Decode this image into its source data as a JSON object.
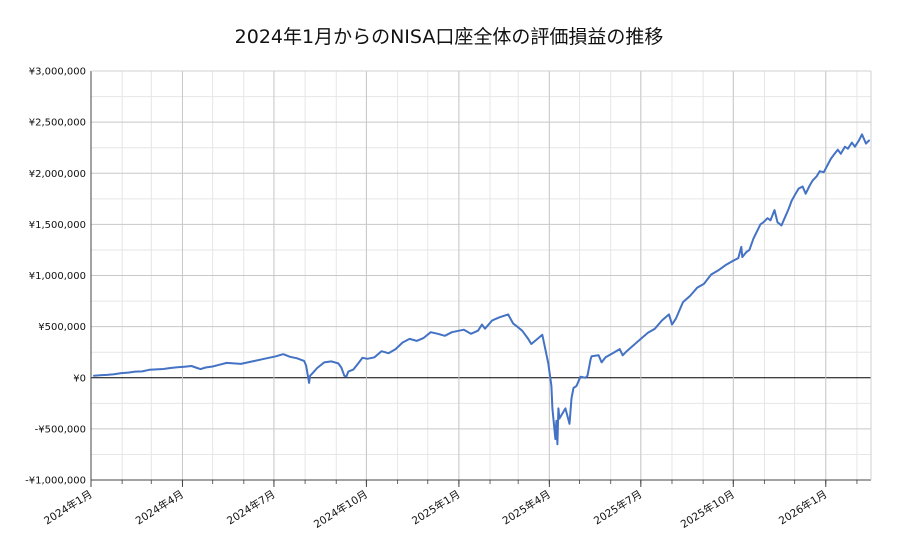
{
  "chart_data": {
    "type": "line",
    "title": "2024年1月からのNISA口座全体の評価損益の推移",
    "xlabel": "",
    "ylabel": "",
    "ylim": [
      -1000000,
      3000000
    ],
    "y_ticks": [
      -1000000,
      -500000,
      0,
      500000,
      1000000,
      1500000,
      2000000,
      2500000,
      3000000
    ],
    "y_tick_labels": [
      "-¥1,000,000",
      "-¥500,000",
      "¥0",
      "¥500,000",
      "¥1,000,000",
      "¥1,500,000",
      "¥2,000,000",
      "¥2,500,000",
      "¥3,000,000"
    ],
    "x_range": [
      "2024-01-01",
      "2026-02-15"
    ],
    "x_ticks": [
      "2024-01-01",
      "2024-04-01",
      "2024-07-01",
      "2024-10-01",
      "2025-01-01",
      "2025-04-01",
      "2025-07-01",
      "2025-10-01",
      "2026-01-01"
    ],
    "x_tick_labels": [
      "2024年1月",
      "2024年4月",
      "2024年7月",
      "2024年10月",
      "2025年1月",
      "2025年4月",
      "2025年7月",
      "2025年10月",
      "2026年1月"
    ],
    "grid": true,
    "legend": "none",
    "series": [
      {
        "color": "#4472c4",
        "points": [
          [
            "2024-01-04",
            20000
          ],
          [
            "2024-01-10",
            25000
          ],
          [
            "2024-01-17",
            28000
          ],
          [
            "2024-01-24",
            35000
          ],
          [
            "2024-01-31",
            45000
          ],
          [
            "2024-02-07",
            50000
          ],
          [
            "2024-02-14",
            60000
          ],
          [
            "2024-02-21",
            62000
          ],
          [
            "2024-02-28",
            78000
          ],
          [
            "2024-03-06",
            82000
          ],
          [
            "2024-03-13",
            86000
          ],
          [
            "2024-03-20",
            95000
          ],
          [
            "2024-03-27",
            102000
          ],
          [
            "2024-04-03",
            108000
          ],
          [
            "2024-04-10",
            115000
          ],
          [
            "2024-04-17",
            90000
          ],
          [
            "2024-04-19",
            85000
          ],
          [
            "2024-04-24",
            100000
          ],
          [
            "2024-05-01",
            110000
          ],
          [
            "2024-05-08",
            128000
          ],
          [
            "2024-05-15",
            145000
          ],
          [
            "2024-05-22",
            140000
          ],
          [
            "2024-05-29",
            135000
          ],
          [
            "2024-06-05",
            150000
          ],
          [
            "2024-06-12",
            165000
          ],
          [
            "2024-06-19",
            180000
          ],
          [
            "2024-06-26",
            195000
          ],
          [
            "2024-07-03",
            210000
          ],
          [
            "2024-07-10",
            230000
          ],
          [
            "2024-07-11",
            228000
          ],
          [
            "2024-07-17",
            205000
          ],
          [
            "2024-07-24",
            190000
          ],
          [
            "2024-07-31",
            165000
          ],
          [
            "2024-08-02",
            120000
          ],
          [
            "2024-08-05",
            -50000
          ],
          [
            "2024-08-06",
            20000
          ],
          [
            "2024-08-08",
            40000
          ],
          [
            "2024-08-13",
            95000
          ],
          [
            "2024-08-20",
            150000
          ],
          [
            "2024-08-27",
            160000
          ],
          [
            "2024-09-03",
            140000
          ],
          [
            "2024-09-06",
            100000
          ],
          [
            "2024-09-09",
            20000
          ],
          [
            "2024-09-11",
            10000
          ],
          [
            "2024-09-13",
            60000
          ],
          [
            "2024-09-18",
            80000
          ],
          [
            "2024-09-24",
            155000
          ],
          [
            "2024-09-27",
            195000
          ],
          [
            "2024-10-02",
            185000
          ],
          [
            "2024-10-09",
            200000
          ],
          [
            "2024-10-16",
            260000
          ],
          [
            "2024-10-23",
            240000
          ],
          [
            "2024-10-30",
            280000
          ],
          [
            "2024-11-06",
            345000
          ],
          [
            "2024-11-13",
            380000
          ],
          [
            "2024-11-20",
            360000
          ],
          [
            "2024-11-27",
            390000
          ],
          [
            "2024-12-04",
            445000
          ],
          [
            "2024-12-11",
            430000
          ],
          [
            "2024-12-18",
            410000
          ],
          [
            "2024-12-25",
            445000
          ],
          [
            "2025-01-06",
            470000
          ],
          [
            "2025-01-13",
            430000
          ],
          [
            "2025-01-20",
            460000
          ],
          [
            "2025-01-24",
            520000
          ],
          [
            "2025-01-27",
            480000
          ],
          [
            "2025-02-03",
            560000
          ],
          [
            "2025-02-10",
            590000
          ],
          [
            "2025-02-19",
            620000
          ],
          [
            "2025-02-24",
            530000
          ],
          [
            "2025-02-28",
            500000
          ],
          [
            "2025-03-05",
            460000
          ],
          [
            "2025-03-11",
            380000
          ],
          [
            "2025-03-14",
            330000
          ],
          [
            "2025-03-19",
            370000
          ],
          [
            "2025-03-25",
            420000
          ],
          [
            "2025-03-28",
            280000
          ],
          [
            "2025-03-31",
            140000
          ],
          [
            "2025-04-03",
            -80000
          ],
          [
            "2025-04-04",
            -300000
          ],
          [
            "2025-04-07",
            -600000
          ],
          [
            "2025-04-08",
            -420000
          ],
          [
            "2025-04-09",
            -650000
          ],
          [
            "2025-04-10",
            -300000
          ],
          [
            "2025-04-11",
            -400000
          ],
          [
            "2025-04-14",
            -350000
          ],
          [
            "2025-04-17",
            -300000
          ],
          [
            "2025-04-21",
            -450000
          ],
          [
            "2025-04-23",
            -200000
          ],
          [
            "2025-04-25",
            -100000
          ],
          [
            "2025-04-28",
            -80000
          ],
          [
            "2025-05-02",
            10000
          ],
          [
            "2025-05-07",
            0
          ],
          [
            "2025-05-09",
            20000
          ],
          [
            "2025-05-12",
            180000
          ],
          [
            "2025-05-13",
            210000
          ],
          [
            "2025-05-20",
            220000
          ],
          [
            "2025-05-23",
            150000
          ],
          [
            "2025-05-27",
            200000
          ],
          [
            "2025-06-03",
            240000
          ],
          [
            "2025-06-10",
            280000
          ],
          [
            "2025-06-13",
            220000
          ],
          [
            "2025-06-17",
            260000
          ],
          [
            "2025-06-24",
            320000
          ],
          [
            "2025-07-01",
            380000
          ],
          [
            "2025-07-08",
            440000
          ],
          [
            "2025-07-15",
            480000
          ],
          [
            "2025-07-22",
            560000
          ],
          [
            "2025-07-29",
            620000
          ],
          [
            "2025-08-01",
            520000
          ],
          [
            "2025-08-05",
            580000
          ],
          [
            "2025-08-12",
            740000
          ],
          [
            "2025-08-19",
            800000
          ],
          [
            "2025-08-26",
            880000
          ],
          [
            "2025-09-02",
            920000
          ],
          [
            "2025-09-05",
            960000
          ],
          [
            "2025-09-09",
            1010000
          ],
          [
            "2025-09-16",
            1050000
          ],
          [
            "2025-09-23",
            1100000
          ],
          [
            "2025-09-30",
            1140000
          ],
          [
            "2025-10-06",
            1170000
          ],
          [
            "2025-10-09",
            1280000
          ],
          [
            "2025-10-10",
            1180000
          ],
          [
            "2025-10-14",
            1230000
          ],
          [
            "2025-10-17",
            1250000
          ],
          [
            "2025-10-21",
            1360000
          ],
          [
            "2025-10-24",
            1420000
          ],
          [
            "2025-10-28",
            1500000
          ],
          [
            "2025-10-31",
            1520000
          ],
          [
            "2025-11-04",
            1560000
          ],
          [
            "2025-11-07",
            1540000
          ],
          [
            "2025-11-11",
            1640000
          ],
          [
            "2025-11-14",
            1520000
          ],
          [
            "2025-11-18",
            1490000
          ],
          [
            "2025-11-21",
            1560000
          ],
          [
            "2025-11-25",
            1650000
          ],
          [
            "2025-11-28",
            1730000
          ],
          [
            "2025-12-02",
            1800000
          ],
          [
            "2025-12-05",
            1850000
          ],
          [
            "2025-12-09",
            1870000
          ],
          [
            "2025-12-12",
            1800000
          ],
          [
            "2025-12-16",
            1880000
          ],
          [
            "2025-12-19",
            1930000
          ],
          [
            "2025-12-23",
            1970000
          ],
          [
            "2025-12-26",
            2020000
          ],
          [
            "2025-12-30",
            2010000
          ],
          [
            "2026-01-06",
            2140000
          ],
          [
            "2026-01-09",
            2180000
          ],
          [
            "2026-01-13",
            2230000
          ],
          [
            "2026-01-16",
            2190000
          ],
          [
            "2026-01-20",
            2260000
          ],
          [
            "2026-01-23",
            2240000
          ],
          [
            "2026-01-27",
            2300000
          ],
          [
            "2026-01-30",
            2260000
          ],
          [
            "2026-02-03",
            2320000
          ],
          [
            "2026-02-06",
            2380000
          ],
          [
            "2026-02-10",
            2290000
          ],
          [
            "2026-02-13",
            2320000
          ]
        ]
      }
    ]
  }
}
